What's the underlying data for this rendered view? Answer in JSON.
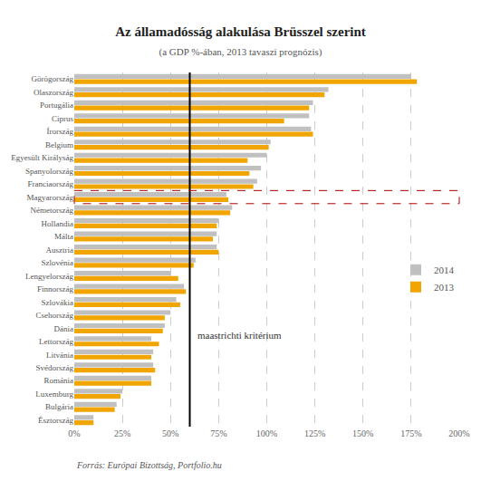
{
  "chart_data": {
    "type": "bar",
    "orientation": "horizontal",
    "title": "Az államadósság alakulása Brüsszel szerint",
    "subtitle": "(a GDP %-ában, 2013 tavaszi prognózis)",
    "source": "Forrás: Európai Bizottság, Portfolio.hu",
    "categories": [
      "Görögország",
      "Olaszország",
      "Portugália",
      "Ciprus",
      "Írország",
      "Belgium",
      "Egyesült Királyság",
      "Spanyolország",
      "Franciaország",
      "Magyarország",
      "Németország",
      "Hollandia",
      "Málta",
      "Ausztria",
      "Szlovénia",
      "Lengyelország",
      "Finnország",
      "Szlovákia",
      "Csehország",
      "Dánia",
      "Lettország",
      "Litvánia",
      "Svédország",
      "Románia",
      "Luxemburg",
      "Bulgária",
      "Észtország"
    ],
    "series": [
      {
        "name": "2014",
        "color": "#c0c0c0",
        "values": [
          175,
          132,
          124,
          122,
          123,
          102,
          100,
          97,
          95,
          79,
          82,
          75,
          74,
          74,
          63,
          50,
          57,
          53,
          50,
          47,
          40,
          41,
          41,
          40,
          25,
          22,
          10
        ]
      },
      {
        "name": "2013",
        "color": "#f0a500",
        "values": [
          178,
          130,
          122,
          109,
          124,
          101,
          90,
          91,
          93,
          80,
          81,
          74,
          72,
          75,
          62,
          54,
          58,
          55,
          47,
          46,
          44,
          40,
          42,
          40,
          24,
          21,
          10
        ]
      }
    ],
    "reference_line": {
      "value": 60,
      "label": "maastrichti kritérium"
    },
    "highlight": {
      "category": "Magyarország",
      "color": "#aa0000"
    },
    "xlim": [
      0,
      200
    ],
    "xticks": [
      {
        "value": 0,
        "label": "0%"
      },
      {
        "value": 25,
        "label": "25%"
      },
      {
        "value": 50,
        "label": "50%"
      },
      {
        "value": 75,
        "label": "75%"
      },
      {
        "value": 100,
        "label": "100%"
      },
      {
        "value": 125,
        "label": "125%"
      },
      {
        "value": 150,
        "label": "150%"
      },
      {
        "value": 175,
        "label": "175%"
      },
      {
        "value": 200,
        "label": "200%"
      }
    ],
    "grid": true,
    "legend": "right"
  }
}
